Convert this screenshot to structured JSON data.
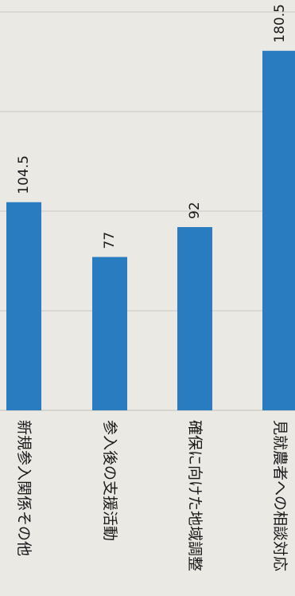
{
  "chart_data": {
    "type": "bar",
    "orientation": "horizontal",
    "categories": [
      "新規参入関係その他",
      "参入後の支援活動",
      "確保に向けた地域調整",
      "見就農者への相談対応"
    ],
    "values": [
      104.5,
      77,
      92,
      180.5
    ],
    "value_labels": [
      "104.5",
      "77",
      "92",
      "180.5"
    ],
    "xlim": [
      0,
      200
    ],
    "grid": true,
    "bar_color": "#2a7cc0"
  }
}
